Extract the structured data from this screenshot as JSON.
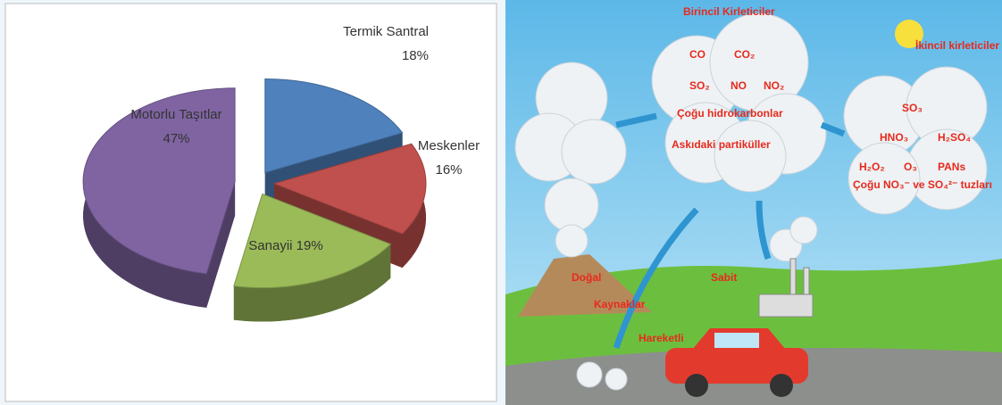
{
  "chart_data": {
    "type": "pie3d",
    "categories": [
      "Termik Santral",
      "Meskenler",
      "Sanayii",
      "Motorlu Taşıtlar"
    ],
    "values": [
      18,
      16,
      19,
      47
    ],
    "value_labels": [
      "18%",
      "16%",
      "19%",
      "47%"
    ],
    "colors": [
      "#4f81bd",
      "#c0504d",
      "#9bbb59",
      "#8064a2"
    ]
  },
  "illustration": {
    "primary_title": "Birincil Kirleticiler",
    "secondary_title": "İkincil kirleticiler",
    "primary": [
      "CO",
      "CO₂",
      "SO₂",
      "NO",
      "NO₂",
      "Çoğu hidrokarbonlar",
      "Askıdaki partiküller"
    ],
    "secondary": [
      "SO₃",
      "HNO₃",
      "H₂SO₄",
      "H₂O₂",
      "O₃",
      "PANs",
      "Çoğu NO₃⁻ ve SO₄²⁻ tuzları"
    ],
    "sources": [
      "Doğal",
      "Kaynaklar",
      "Sabit",
      "Hareketli"
    ]
  }
}
